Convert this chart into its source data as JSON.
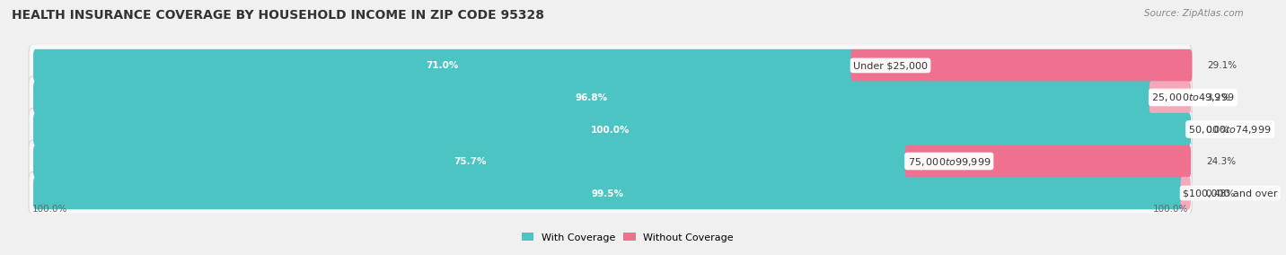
{
  "title": "HEALTH INSURANCE COVERAGE BY HOUSEHOLD INCOME IN ZIP CODE 95328",
  "source": "Source: ZipAtlas.com",
  "categories": [
    "Under $25,000",
    "$25,000 to $49,999",
    "$50,000 to $74,999",
    "$75,000 to $99,999",
    "$100,000 and over"
  ],
  "with_coverage": [
    71.0,
    96.8,
    100.0,
    75.7,
    99.5
  ],
  "without_coverage": [
    29.1,
    3.2,
    0.0,
    24.3,
    0.48
  ],
  "with_coverage_labels": [
    "71.0%",
    "96.8%",
    "100.0%",
    "75.7%",
    "99.5%"
  ],
  "without_coverage_labels": [
    "29.1%",
    "3.2%",
    "0.0%",
    "24.3%",
    "0.48%"
  ],
  "color_with": "#4dc4c4",
  "color_without": "#f07090",
  "color_without_light": "#f4a0b8",
  "bg_color": "#f0f0f0",
  "bar_bg": "#f8f8f8",
  "bar_border": "#d8d8d8",
  "title_fontsize": 10,
  "label_fontsize": 8,
  "pct_fontsize": 7.5,
  "tick_fontsize": 7.5,
  "legend_fontsize": 8,
  "bar_height": 0.72,
  "x_left_label": "100.0%",
  "x_right_label": "100.0%",
  "xmin": 0,
  "xmax": 100
}
